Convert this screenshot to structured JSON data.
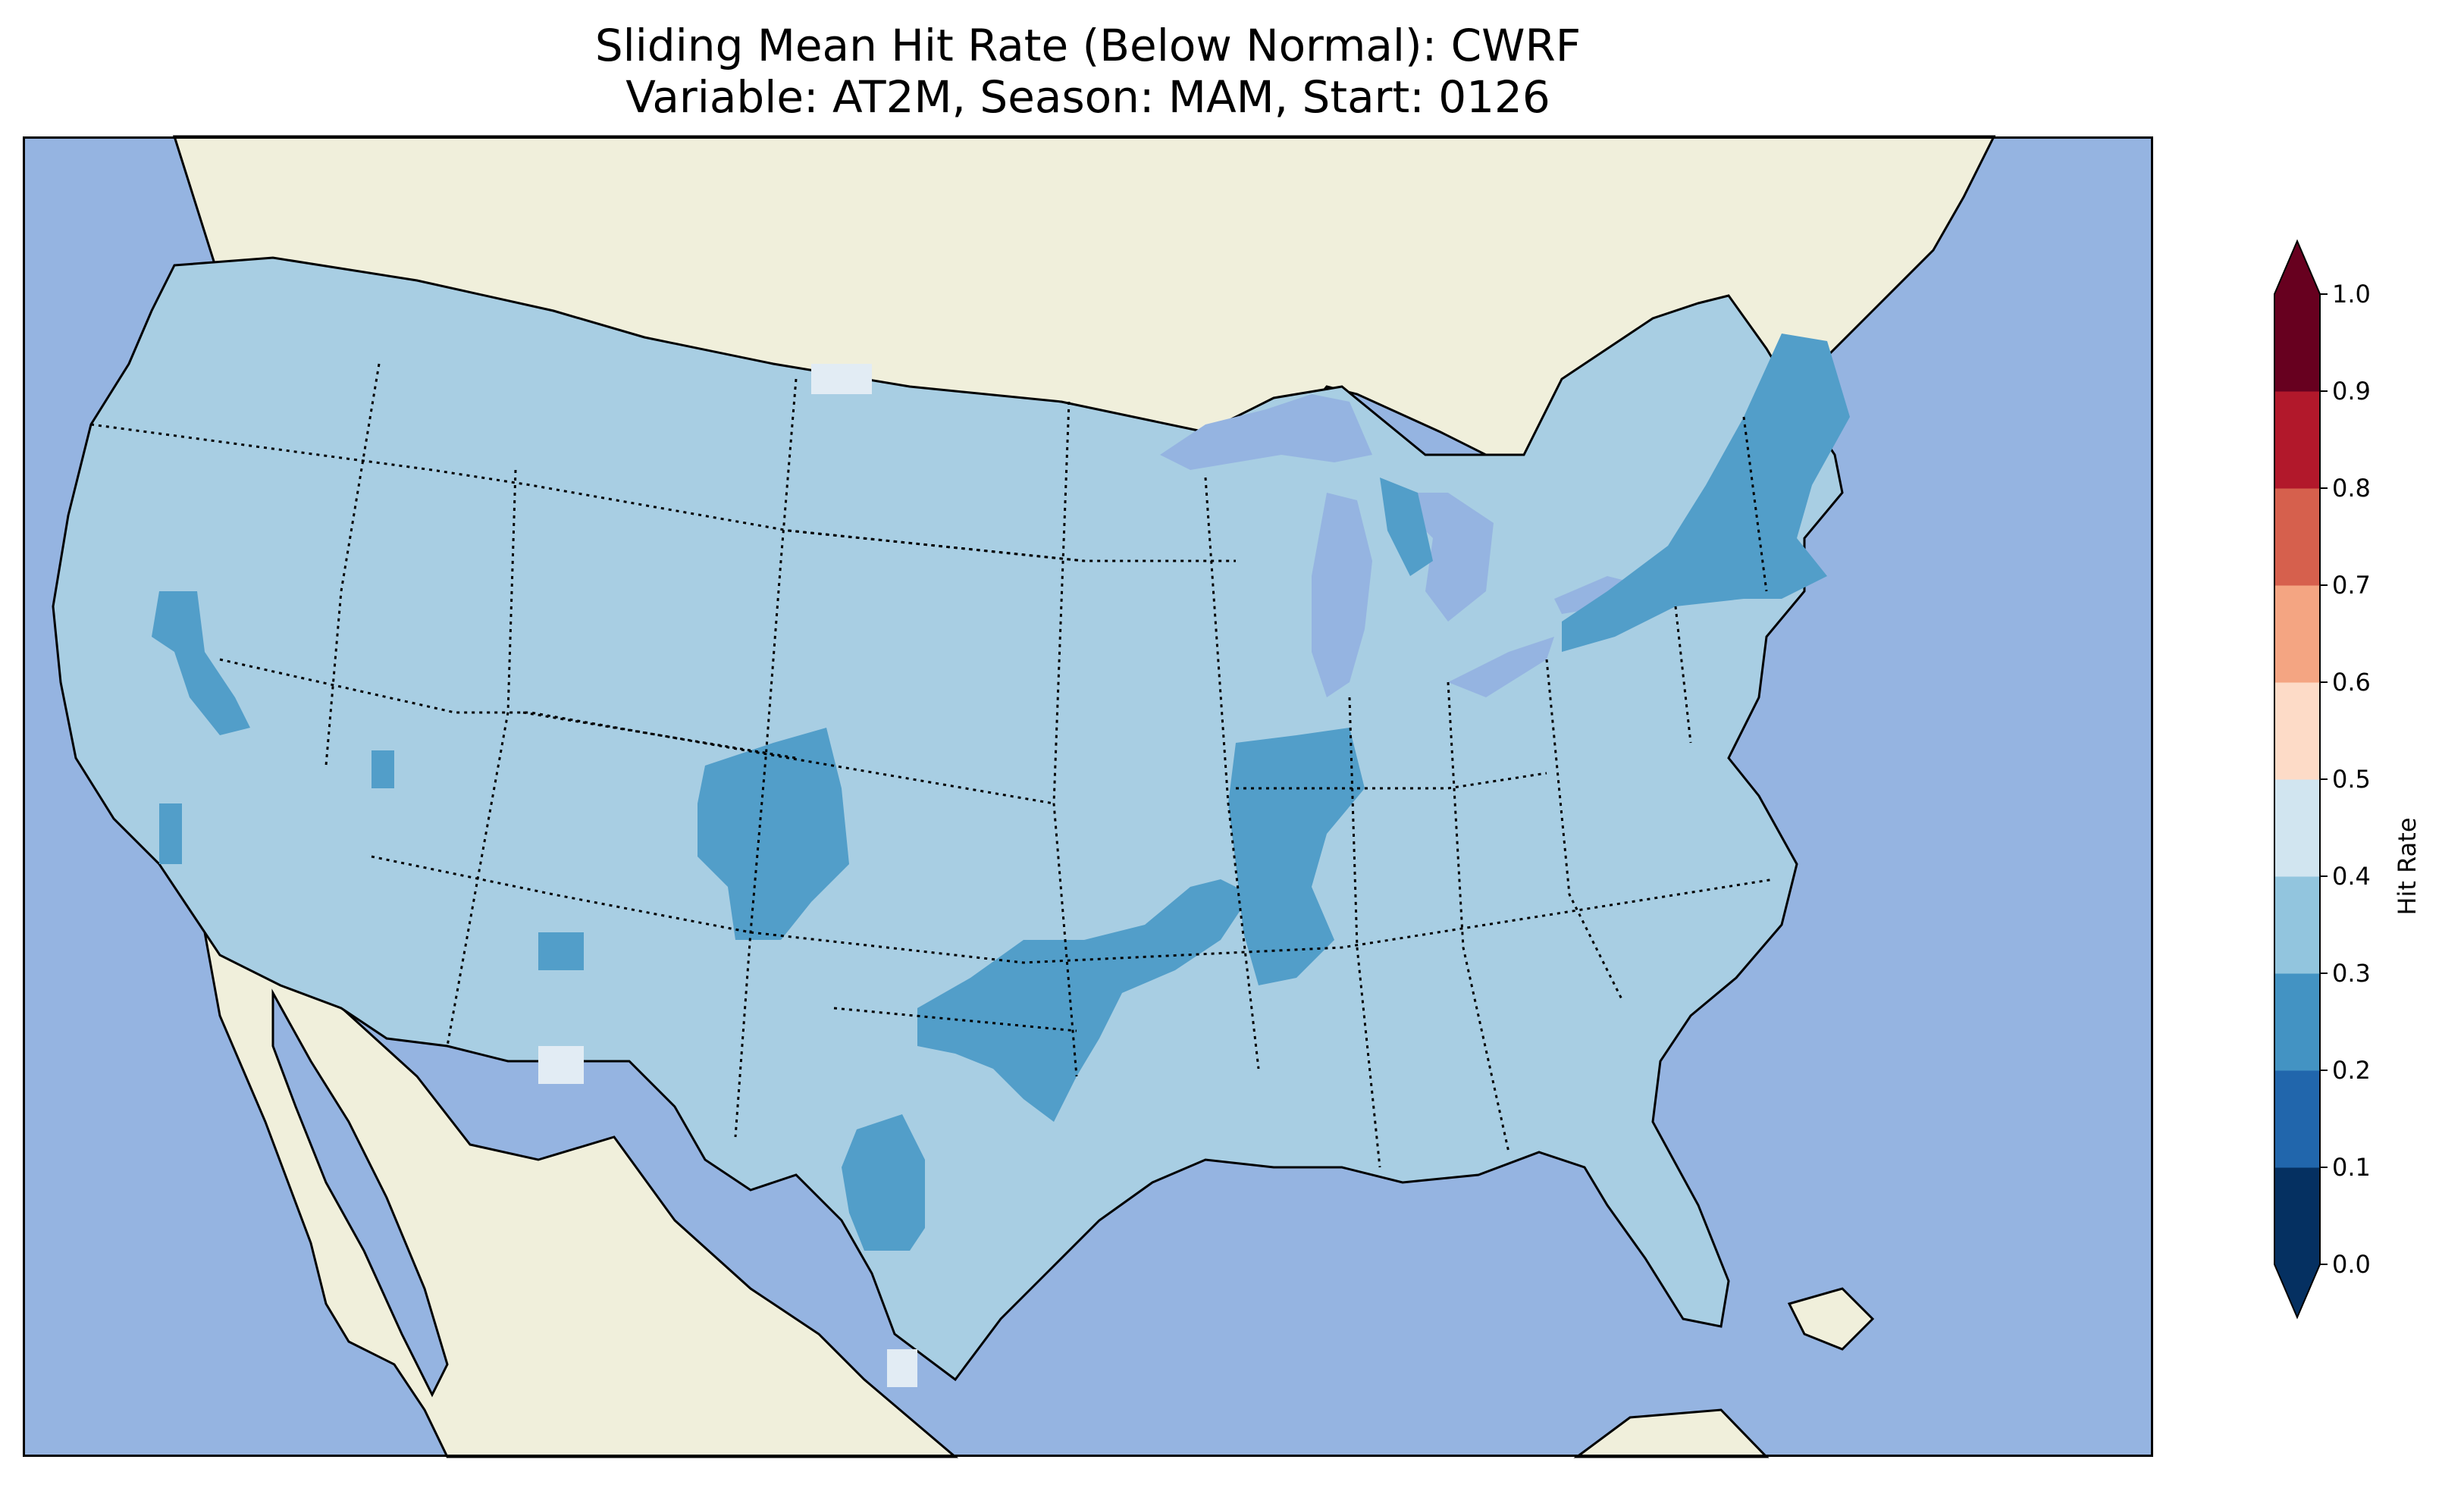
{
  "title": {
    "line1": "Sliding Mean Hit Rate (Below Normal): CWRF",
    "line2": "Variable: AT2M, Season: MAM, Start: 0126"
  },
  "colors": {
    "ocean": "#95b4e1",
    "land_outside": "#f0efdb",
    "lakes": "#95b4e1",
    "border": "#000000"
  },
  "map_data": {
    "region": "Contiguous United States",
    "projection": "lambert-conformal",
    "state_borders": "dotted",
    "coastlines": "solid",
    "dominant_value_range": [
      0.3,
      0.4
    ],
    "areas": [
      {
        "name": "Northeast / New England",
        "range": [
          0.2,
          0.3
        ]
      },
      {
        "name": "Colorado front range",
        "range": [
          0.2,
          0.3
        ]
      },
      {
        "name": "Missouri - Arkansas - Oklahoma band",
        "range": [
          0.2,
          0.3
        ]
      },
      {
        "name": "Illinois - Indiana",
        "range": [
          0.2,
          0.3
        ]
      },
      {
        "name": "West Texas",
        "range": [
          0.2,
          0.3
        ]
      },
      {
        "name": "Central Nevada",
        "range": [
          0.2,
          0.3
        ]
      },
      {
        "name": "North Dakota - Montana border patch",
        "range": [
          0.4,
          0.5
        ]
      },
      {
        "name": "New Mexico - Arizona border patch",
        "range": [
          0.4,
          0.5
        ]
      }
    ]
  },
  "colorbar": {
    "label": "Hit Rate",
    "ticks": [
      "0.0",
      "0.1",
      "0.2",
      "0.3",
      "0.4",
      "0.5",
      "0.6",
      "0.7",
      "0.8",
      "0.9",
      "1.0"
    ],
    "colors": [
      "#053061",
      "#2166ac",
      "#4393c3",
      "#92c5de",
      "#d1e5f0",
      "#fddbc7",
      "#f4a582",
      "#d6604d",
      "#b2182b",
      "#67001f"
    ],
    "map_colors": [
      "#053061",
      "#2166ac",
      "#529ec9",
      "#a8cee3",
      "#e2ecf4",
      "#fbe4d8",
      "#f6b493",
      "#dc735b",
      "#b6202f",
      "#6a0121"
    ],
    "extend_min": "#053061",
    "extend_max": "#67001f"
  }
}
